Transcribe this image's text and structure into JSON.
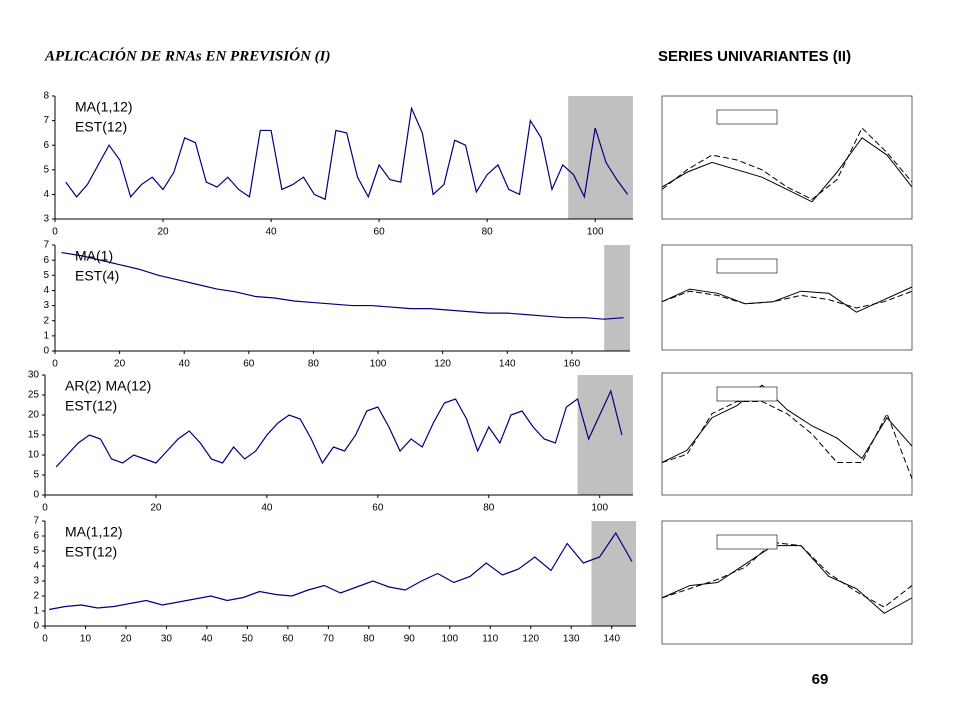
{
  "header": {
    "left_title": "APLICACIÓN DE RNAs EN PREVISIÓN (I)",
    "right_title": "SERIES UNIVARIANTES (II)",
    "page_number": "69"
  },
  "chart_data": [
    {
      "type": "line",
      "annotations": [
        "MA(1,12)",
        "EST(12)"
      ],
      "xlim": [
        0,
        107
      ],
      "xticks": [
        0,
        20,
        40,
        60,
        80,
        100
      ],
      "ylim": [
        3,
        8
      ],
      "yticks": [
        3,
        4,
        5,
        6,
        7,
        8
      ],
      "highlight_x": [
        95,
        107
      ],
      "x": [
        2,
        4,
        6,
        8,
        10,
        12,
        14,
        16,
        18,
        20,
        22,
        24,
        26,
        28,
        30,
        32,
        34,
        36,
        38,
        40,
        42,
        44,
        46,
        48,
        50,
        52,
        54,
        56,
        58,
        60,
        62,
        64,
        66,
        68,
        70,
        72,
        74,
        76,
        78,
        80,
        82,
        84,
        86,
        88,
        90,
        92,
        94,
        96,
        98,
        100,
        102,
        104,
        106
      ],
      "series": [
        {
          "color": "#000080",
          "values": [
            4.5,
            3.9,
            4.4,
            5.2,
            6.0,
            5.4,
            3.9,
            4.4,
            4.7,
            4.2,
            4.9,
            6.3,
            6.1,
            4.5,
            4.3,
            4.7,
            4.2,
            3.9,
            6.6,
            6.6,
            4.2,
            4.4,
            4.7,
            4.0,
            3.8,
            6.6,
            6.5,
            4.7,
            3.9,
            5.2,
            4.6,
            4.5,
            7.5,
            6.5,
            4.0,
            4.4,
            6.2,
            6.0,
            4.1,
            4.8,
            5.2,
            4.2,
            4.0,
            7.0,
            6.3,
            4.2,
            5.2,
            4.8,
            3.9,
            6.7,
            5.3,
            4.6,
            4.0
          ]
        }
      ]
    },
    {
      "type": "line",
      "annotations": [
        "MA(1)",
        "EST(4)"
      ],
      "xlim": [
        0,
        178
      ],
      "xticks": [
        0,
        20,
        40,
        60,
        80,
        100,
        120,
        140,
        160
      ],
      "ylim": [
        0,
        7
      ],
      "yticks": [
        0,
        1,
        2,
        3,
        4,
        5,
        6,
        7
      ],
      "highlight_x": [
        170,
        178
      ],
      "x": [
        2,
        8,
        14,
        20,
        26,
        32,
        38,
        44,
        50,
        56,
        62,
        68,
        74,
        80,
        86,
        92,
        98,
        104,
        110,
        116,
        122,
        128,
        134,
        140,
        146,
        152,
        158,
        164,
        170,
        176
      ],
      "series": [
        {
          "color": "#000080",
          "values": [
            6.5,
            6.3,
            6.0,
            5.7,
            5.4,
            5.0,
            4.7,
            4.4,
            4.1,
            3.9,
            3.6,
            3.5,
            3.3,
            3.2,
            3.1,
            3.0,
            3.0,
            2.9,
            2.8,
            2.8,
            2.7,
            2.6,
            2.5,
            2.5,
            2.4,
            2.3,
            2.2,
            2.2,
            2.1,
            2.2
          ]
        }
      ]
    },
    {
      "type": "line",
      "annotations": [
        "AR(2) MA(12)",
        "EST(12)"
      ],
      "xlim": [
        0,
        106
      ],
      "xticks": [
        0,
        20,
        40,
        60,
        80,
        100
      ],
      "ylim": [
        0,
        30
      ],
      "yticks": [
        0,
        5,
        10,
        15,
        20,
        25,
        30
      ],
      "highlight_x": [
        96,
        106
      ],
      "x": [
        2,
        4,
        6,
        8,
        10,
        12,
        14,
        16,
        18,
        20,
        22,
        24,
        26,
        28,
        30,
        32,
        34,
        36,
        38,
        40,
        42,
        44,
        46,
        48,
        50,
        52,
        54,
        56,
        58,
        60,
        62,
        64,
        66,
        68,
        70,
        72,
        74,
        76,
        78,
        80,
        82,
        84,
        86,
        88,
        90,
        92,
        94,
        96,
        98,
        100,
        102,
        104
      ],
      "series": [
        {
          "color": "#000080",
          "values": [
            7,
            10,
            13,
            15,
            14,
            9,
            8,
            10,
            9,
            8,
            11,
            14,
            16,
            13,
            9,
            8,
            12,
            9,
            11,
            15,
            18,
            20,
            19,
            14,
            8,
            12,
            11,
            15,
            21,
            22,
            17,
            11,
            14,
            12,
            18,
            23,
            24,
            19,
            11,
            17,
            13,
            20,
            21,
            17,
            14,
            13,
            22,
            24,
            14,
            20,
            26,
            15
          ]
        }
      ]
    },
    {
      "type": "line",
      "annotations": [
        "MA(1,12)",
        "EST(12)"
      ],
      "xlim": [
        0,
        146
      ],
      "xticks": [
        0,
        10,
        20,
        30,
        40,
        50,
        60,
        70,
        80,
        90,
        100,
        110,
        120,
        130,
        140
      ],
      "ylim": [
        0,
        7
      ],
      "yticks": [
        0,
        1,
        2,
        3,
        4,
        5,
        6,
        7
      ],
      "highlight_x": [
        135,
        146
      ],
      "x": [
        1,
        5,
        9,
        13,
        17,
        21,
        25,
        29,
        33,
        37,
        41,
        45,
        49,
        53,
        57,
        61,
        65,
        69,
        73,
        77,
        81,
        85,
        89,
        93,
        97,
        101,
        105,
        109,
        113,
        117,
        121,
        125,
        129,
        133,
        137,
        141,
        145
      ],
      "series": [
        {
          "color": "#000080",
          "values": [
            1.1,
            1.3,
            1.4,
            1.2,
            1.3,
            1.5,
            1.7,
            1.4,
            1.6,
            1.8,
            2.0,
            1.7,
            1.9,
            2.3,
            2.1,
            2.0,
            2.4,
            2.7,
            2.2,
            2.6,
            3.0,
            2.6,
            2.4,
            3.0,
            3.5,
            2.9,
            3.3,
            4.2,
            3.4,
            3.8,
            4.6,
            3.7,
            5.5,
            4.2,
            4.6,
            6.2,
            4.3
          ]
        }
      ]
    },
    {
      "type": "comparison",
      "ylim": [
        3,
        8
      ],
      "series": [
        {
          "color": "#000000",
          "style": "solid",
          "values": [
            4.3,
            4.9,
            5.3,
            5.0,
            4.7,
            4.2,
            3.7,
            4.9,
            6.3,
            5.6,
            4.3
          ]
        },
        {
          "color": "#000000",
          "style": "dashed",
          "values": [
            4.2,
            5.0,
            5.6,
            5.4,
            5.0,
            4.3,
            3.8,
            4.6,
            6.7,
            5.7,
            4.5
          ]
        }
      ]
    },
    {
      "type": "comparison",
      "ylim": [
        1,
        3.5
      ],
      "series": [
        {
          "color": "#000000",
          "style": "solid",
          "values": [
            2.15,
            2.45,
            2.35,
            2.1,
            2.15,
            2.4,
            2.35,
            1.9,
            2.2,
            2.5
          ]
        },
        {
          "color": "#000000",
          "style": "dashed",
          "values": [
            2.15,
            2.4,
            2.3,
            2.1,
            2.15,
            2.3,
            2.2,
            2.0,
            2.15,
            2.4
          ]
        }
      ]
    },
    {
      "type": "comparison",
      "ylim": [
        0,
        30
      ],
      "series": [
        {
          "color": "#000000",
          "style": "solid",
          "values": [
            8,
            11,
            19,
            22,
            27,
            21,
            17,
            14,
            9,
            19,
            12
          ]
        },
        {
          "color": "#000000",
          "style": "dashed",
          "values": [
            8,
            10,
            20,
            23,
            23,
            20,
            15,
            8,
            8,
            20,
            4
          ]
        }
      ]
    },
    {
      "type": "comparison",
      "ylim": [
        3,
        7
      ],
      "series": [
        {
          "color": "#000000",
          "style": "solid",
          "values": [
            4.5,
            4.9,
            5.0,
            5.6,
            6.2,
            6.2,
            5.2,
            4.8,
            4.0,
            4.5
          ]
        },
        {
          "color": "#000000",
          "style": "dashed",
          "values": [
            4.5,
            4.8,
            5.1,
            5.5,
            6.3,
            6.2,
            5.3,
            4.7,
            4.2,
            4.9
          ]
        }
      ]
    }
  ]
}
